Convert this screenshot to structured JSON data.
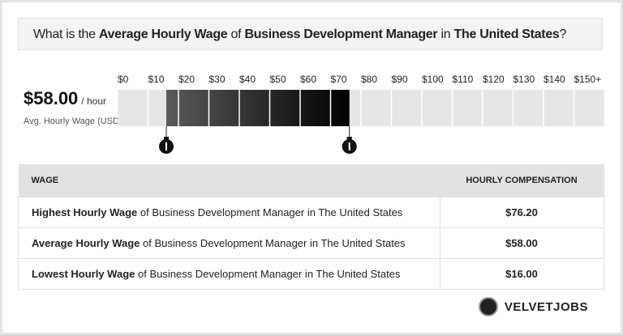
{
  "title": {
    "parts": [
      "What is the ",
      "Average Hourly Wage",
      " of ",
      "Business Development Manager",
      " in ",
      "The United States",
      "?"
    ]
  },
  "summary": {
    "value": "$58.00",
    "unit": "/ hour",
    "caption": "Avg. Hourly Wage (USD)"
  },
  "range": {
    "xlim": [
      0,
      160
    ],
    "xticks": [
      {
        "value": 0,
        "label": "$0"
      },
      {
        "value": 10,
        "label": "$10"
      },
      {
        "value": 20,
        "label": "$20"
      },
      {
        "value": 30,
        "label": "$30"
      },
      {
        "value": 40,
        "label": "$40"
      },
      {
        "value": 50,
        "label": "$50"
      },
      {
        "value": 60,
        "label": "$60"
      },
      {
        "value": 70,
        "label": "$70"
      },
      {
        "value": 80,
        "label": "$80"
      },
      {
        "value": 90,
        "label": "$90"
      },
      {
        "value": 100,
        "label": "$100"
      },
      {
        "value": 110,
        "label": "$110"
      },
      {
        "value": 120,
        "label": "$120"
      },
      {
        "value": 130,
        "label": "$130"
      },
      {
        "value": 140,
        "label": "$140"
      },
      {
        "value": 150,
        "label": "$150+"
      }
    ],
    "low": 16,
    "high": 76.2
  },
  "table": {
    "header": [
      "WAGE",
      "HOURLY COMPENSATION"
    ],
    "rows": [
      [
        {
          "bold": "Highest Hourly Wage",
          "rest": " of Business Development Manager in The United States"
        },
        "$76.20"
      ],
      [
        {
          "bold": "Average Hourly Wage",
          "rest": " of Business Development Manager in The United States"
        },
        "$58.00"
      ],
      [
        {
          "bold": "Lowest Hourly Wage",
          "rest": " of Business Development Manager in The United States"
        },
        "$16.00"
      ]
    ]
  },
  "brand": "VELVETJOBS"
}
